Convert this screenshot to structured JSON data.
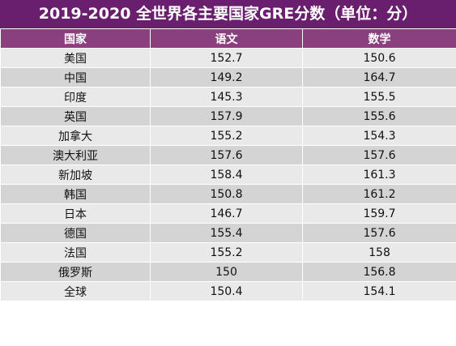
{
  "chart_data": {
    "type": "table",
    "title": "2019-2020 全世界各主要国家GRE分数（单位：分）",
    "columns": [
      "国家",
      "语文",
      "数学"
    ],
    "rows": [
      {
        "country": "美国",
        "verbal": "152.7",
        "math": "150.6"
      },
      {
        "country": "中国",
        "verbal": "149.2",
        "math": "164.7"
      },
      {
        "country": "印度",
        "verbal": "145.3",
        "math": "155.5"
      },
      {
        "country": "英国",
        "verbal": "157.9",
        "math": "155.6"
      },
      {
        "country": "加拿大",
        "verbal": "155.2",
        "math": "154.3"
      },
      {
        "country": "澳大利亚",
        "verbal": "157.6",
        "math": "157.6"
      },
      {
        "country": "新加坡",
        "verbal": "158.4",
        "math": "161.3"
      },
      {
        "country": "韩国",
        "verbal": "150.8",
        "math": "161.2"
      },
      {
        "country": "日本",
        "verbal": "146.7",
        "math": "159.7"
      },
      {
        "country": "德国",
        "verbal": "155.4",
        "math": "157.6"
      },
      {
        "country": "法国",
        "verbal": "155.2",
        "math": "158"
      },
      {
        "country": "俄罗斯",
        "verbal": "150",
        "math": "156.8"
      },
      {
        "country": "全球",
        "verbal": "150.4",
        "math": "154.1"
      }
    ]
  },
  "colors": {
    "title_bg": "#6a1e6e",
    "header_bg": "#8a3f7e",
    "row_light": "#e9e9e9",
    "row_dark": "#d4d4d4"
  }
}
